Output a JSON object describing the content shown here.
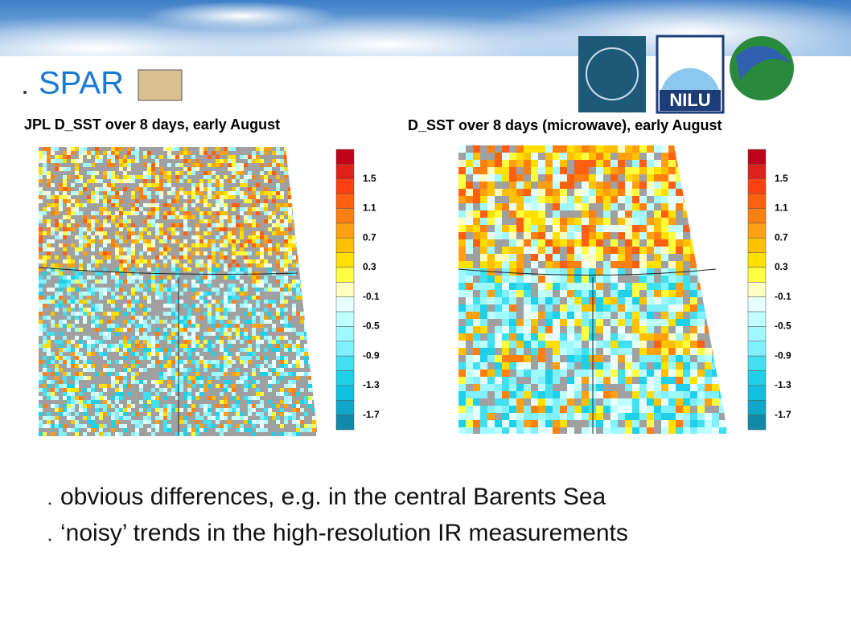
{
  "header": {
    "title": "SPAR"
  },
  "logos": {
    "nilu": "NILU"
  },
  "panels": [
    {
      "title": "JPL D_SST over 8 days, early August"
    },
    {
      "title": "D_SST over 8 days (microwave), early August"
    }
  ],
  "colorbar": {
    "colors": [
      "#c0001a",
      "#e0201a",
      "#ff4010",
      "#ff6010",
      "#ff8010",
      "#ffa010",
      "#ffc000",
      "#ffe000",
      "#ffff40",
      "#ffffc0",
      "#e8ffff",
      "#c0ffff",
      "#a0f8ff",
      "#80f0ff",
      "#40e0f0",
      "#20d0e8",
      "#10c0e0",
      "#10a8c8",
      "#108aa8"
    ],
    "labels": [
      "1.5",
      "1.1",
      "0.7",
      "0.3",
      "-0.1",
      "-0.5",
      "-0.9",
      "-1.3",
      "-1.7"
    ]
  },
  "bullets": [
    "obvious differences, e.g. in the central Barents Sea",
    "‘noisy’ trends in the high-resolution IR measurements"
  ]
}
